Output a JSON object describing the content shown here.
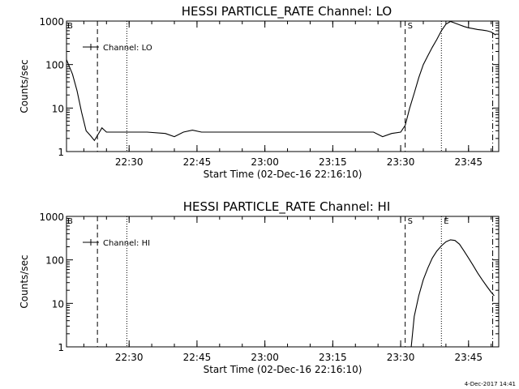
{
  "chart_data": [
    {
      "type": "line",
      "title": "HESSI PARTICLE_RATE Channel: LO",
      "xlabel": "Start Time (02-Dec-16 22:16:10)",
      "ylabel": "Counts/sec",
      "yscale": "log",
      "ylim": [
        1,
        1000
      ],
      "xlim": [
        "22:16:10",
        "23:51:40"
      ],
      "x_ticks": [
        "22:30",
        "22:45",
        "23:00",
        "23:15",
        "23:30",
        "23:45"
      ],
      "y_ticks": [
        "1",
        "10",
        "100",
        "1000"
      ],
      "legend": {
        "position": "top-left",
        "label": "Channel: LO"
      },
      "markers": [
        {
          "type": "dashed",
          "x": "22:23:00",
          "label": ""
        },
        {
          "type": "dotted",
          "x": "22:29:30",
          "label": ""
        },
        {
          "type": "dashed",
          "x": "23:31:00",
          "label": "S"
        },
        {
          "type": "dotted",
          "x": "23:39:00",
          "label": ""
        },
        {
          "type": "dash-dot",
          "x": "23:50:20",
          "label": ""
        }
      ],
      "corner_label": "B",
      "series": [
        {
          "x": [
            "22:16:10",
            "22:17:30",
            "22:18:30",
            "22:19:30",
            "22:20:30",
            "22:21:30",
            "22:22:20",
            "22:23:10",
            "22:24:00",
            "22:25:00",
            "22:26:00",
            "22:30:00",
            "22:34:00",
            "22:38:00",
            "22:40:00",
            "22:42:00",
            "22:44:00",
            "22:46:00",
            "22:48:00",
            "22:52:00",
            "22:56:00",
            "23:00:00",
            "23:04:00",
            "23:08:00",
            "23:12:00",
            "23:16:00",
            "23:20:00",
            "23:24:00",
            "23:26:00",
            "23:28:00",
            "23:30:00",
            "23:31:00",
            "23:32:00",
            "23:33:00",
            "23:34:00",
            "23:35:00",
            "23:36:00",
            "23:37:00",
            "23:38:00",
            "23:39:00",
            "23:40:00",
            "23:41:00",
            "23:42:00",
            "23:43:00",
            "23:44:00",
            "23:45:00",
            "23:46:00",
            "23:47:00",
            "23:48:00",
            "23:49:00",
            "23:50:00",
            "23:51:00"
          ],
          "y": [
            130,
            60,
            25,
            8,
            3,
            2.3,
            1.8,
            2.5,
            3.5,
            2.8,
            2.8,
            2.8,
            2.8,
            2.6,
            2.2,
            2.8,
            3.1,
            2.8,
            2.8,
            2.8,
            2.8,
            2.8,
            2.8,
            2.8,
            2.8,
            2.8,
            2.8,
            2.8,
            2.2,
            2.6,
            2.8,
            4,
            10,
            22,
            50,
            100,
            160,
            250,
            380,
            600,
            850,
            980,
            900,
            820,
            750,
            700,
            670,
            640,
            620,
            600,
            560,
            480
          ]
        }
      ]
    },
    {
      "type": "line",
      "title": "HESSI PARTICLE_RATE Channel: HI",
      "xlabel": "Start Time (02-Dec-16 22:16:10)",
      "ylabel": "Counts/sec",
      "yscale": "log",
      "ylim": [
        1,
        1000
      ],
      "xlim": [
        "22:16:10",
        "23:51:40"
      ],
      "x_ticks": [
        "22:30",
        "22:45",
        "23:00",
        "23:15",
        "23:30",
        "23:45"
      ],
      "y_ticks": [
        "1",
        "10",
        "100",
        "1000"
      ],
      "legend": {
        "position": "top-left",
        "label": "Channel: HI"
      },
      "markers": [
        {
          "type": "dashed",
          "x": "22:23:00",
          "label": ""
        },
        {
          "type": "dotted",
          "x": "22:29:30",
          "label": ""
        },
        {
          "type": "dashed",
          "x": "23:31:00",
          "label": "S"
        },
        {
          "type": "dotted",
          "x": "23:39:00",
          "label": "E"
        },
        {
          "type": "dash-dot",
          "x": "23:50:20",
          "label": ""
        }
      ],
      "corner_label": "B",
      "series": [
        {
          "x": [
            "23:32:20",
            "23:33:00",
            "23:34:00",
            "23:35:00",
            "23:36:00",
            "23:37:00",
            "23:38:00",
            "23:39:00",
            "23:40:00",
            "23:41:00",
            "23:42:00",
            "23:43:00",
            "23:44:00",
            "23:45:00",
            "23:46:00",
            "23:47:00",
            "23:48:00",
            "23:49:00",
            "23:50:00",
            "23:50:40"
          ],
          "y": [
            1,
            5,
            15,
            35,
            65,
            110,
            160,
            210,
            260,
            290,
            280,
            230,
            160,
            110,
            75,
            50,
            35,
            25,
            18,
            15
          ]
        }
      ]
    }
  ],
  "footer": {
    "timestamp": "4-Dec-2017 14:41"
  }
}
